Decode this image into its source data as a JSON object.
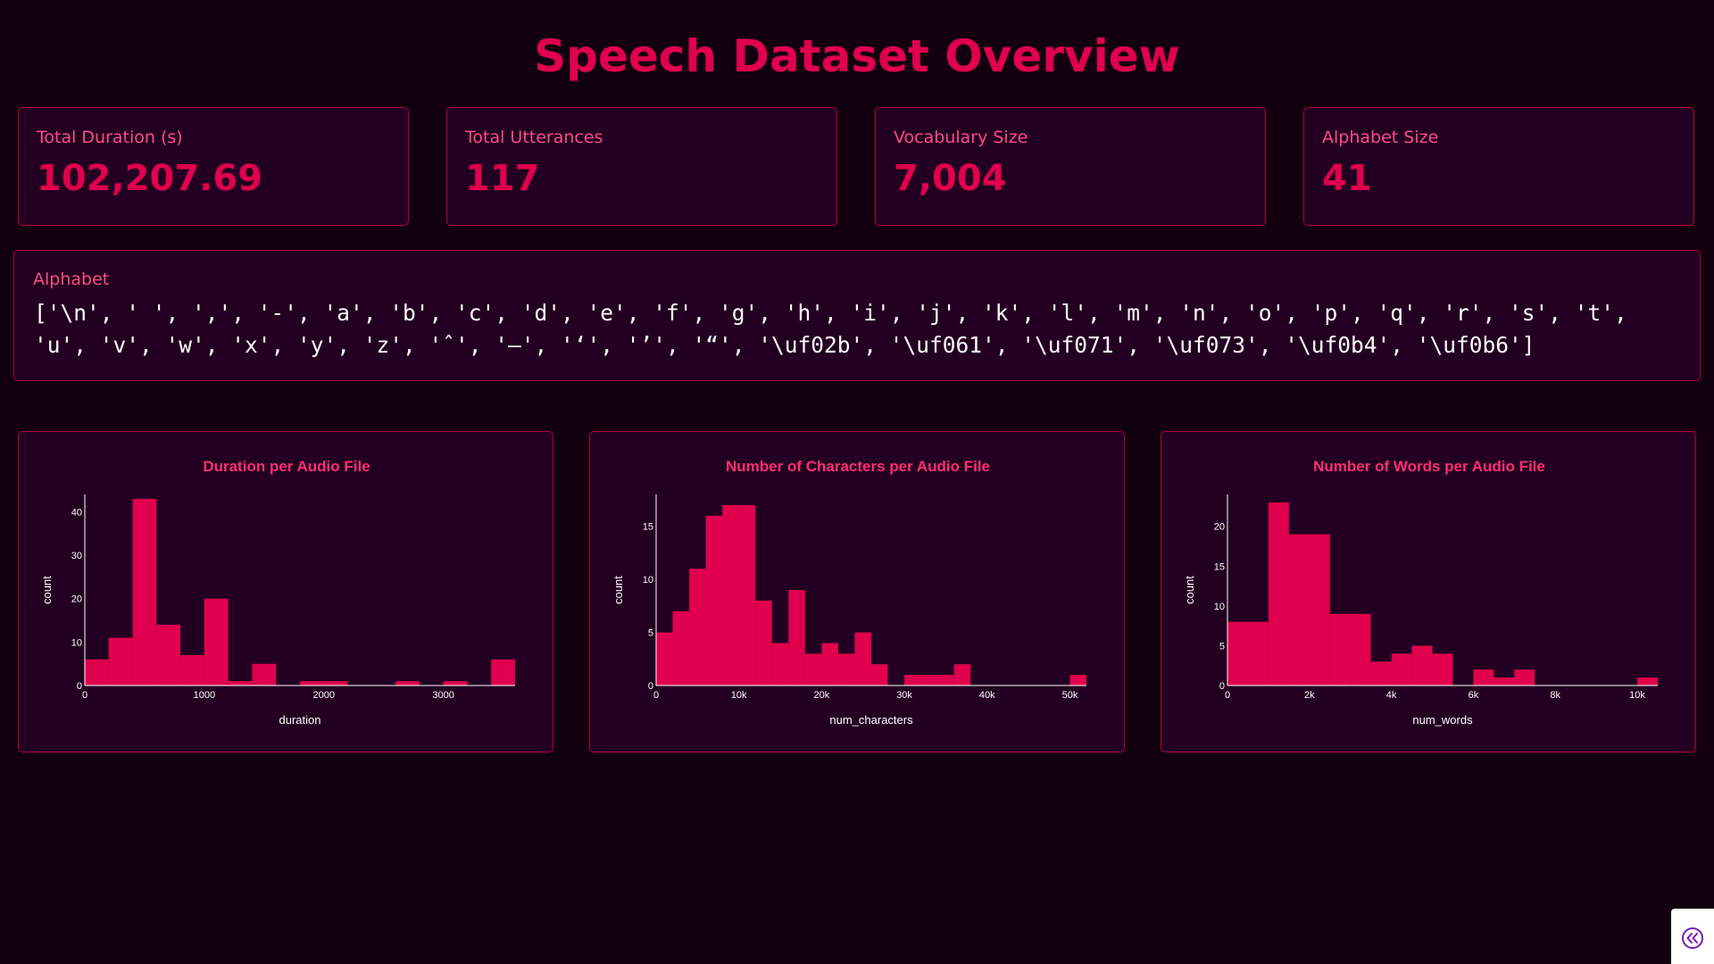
{
  "page": {
    "title": "Speech Dataset Overview"
  },
  "colors": {
    "background": "#12000f",
    "card_background": "#230021",
    "card_border": "#b5003d",
    "accent": "#e0004d",
    "label": "#ff4a87",
    "bar": "#e0004d"
  },
  "stats": [
    {
      "label": "Total Duration (s)",
      "value": "102,207.69"
    },
    {
      "label": "Total Utterances",
      "value": "117"
    },
    {
      "label": "Vocabulary Size",
      "value": "7,004"
    },
    {
      "label": "Alphabet Size",
      "value": "41"
    }
  ],
  "alphabet": {
    "label": "Alphabet",
    "text": "['\\n', ' ', ',', '-', 'a', 'b', 'c', 'd', 'e', 'f', 'g', 'h', 'i', 'j', 'k', 'l', 'm', 'n', 'o', 'p', 'q', 'r', 's', 't', 'u', 'v', 'w', 'x', 'y', 'z', 'ˆ', '—', '‘', '’', '“', '\\uf02b', '\\uf061', '\\uf071', '\\uf073', '\\uf0b4', '\\uf0b6']"
  },
  "collapse_button": {
    "icon": "chevron-double-left-icon"
  },
  "chart_data": [
    {
      "type": "bar",
      "title": "Duration per Audio File",
      "xlabel": "duration",
      "ylabel": "count",
      "xlim": [
        0,
        3600
      ],
      "ylim": [
        0,
        44
      ],
      "xticks": [
        0,
        1000,
        2000,
        3000
      ],
      "xtick_labels": [
        "0",
        "1000",
        "2000",
        "3000"
      ],
      "yticks": [
        0,
        10,
        20,
        30,
        40
      ],
      "ytick_labels": [
        "0",
        "10",
        "20",
        "30",
        "40"
      ],
      "bin_width": 200,
      "bins_start": [
        0,
        200,
        400,
        600,
        800,
        1000,
        1200,
        1400,
        1600,
        1800,
        2000,
        2200,
        2400,
        2600,
        2800,
        3000,
        3200,
        3400
      ],
      "values": [
        6,
        11,
        43,
        14,
        7,
        20,
        1,
        5,
        0,
        1,
        1,
        0,
        0,
        1,
        0,
        1,
        0,
        6
      ],
      "grid": false
    },
    {
      "type": "bar",
      "title": "Number of Characters per Audio File",
      "xlabel": "num_characters",
      "ylabel": "count",
      "xlim": [
        0,
        52000
      ],
      "ylim": [
        0,
        18
      ],
      "xticks": [
        0,
        10000,
        20000,
        30000,
        40000,
        50000
      ],
      "xtick_labels": [
        "0",
        "10k",
        "20k",
        "30k",
        "40k",
        "50k"
      ],
      "yticks": [
        0,
        5,
        10,
        15
      ],
      "ytick_labels": [
        "0",
        "5",
        "10",
        "15"
      ],
      "bin_width": 2000,
      "bins_start": [
        0,
        2000,
        4000,
        6000,
        8000,
        10000,
        12000,
        14000,
        16000,
        18000,
        20000,
        22000,
        24000,
        26000,
        28000,
        30000,
        32000,
        34000,
        36000,
        38000,
        40000,
        42000,
        44000,
        46000,
        48000,
        50000
      ],
      "values": [
        5,
        7,
        11,
        16,
        17,
        17,
        8,
        4,
        9,
        3,
        4,
        3,
        5,
        2,
        0,
        1,
        1,
        1,
        2,
        0,
        0,
        0,
        0,
        0,
        0,
        1
      ],
      "grid": false
    },
    {
      "type": "bar",
      "title": "Number of Words per Audio File",
      "xlabel": "num_words",
      "ylabel": "count",
      "xlim": [
        0,
        10500
      ],
      "ylim": [
        0,
        24
      ],
      "xticks": [
        0,
        2000,
        4000,
        6000,
        8000,
        10000
      ],
      "xtick_labels": [
        "0",
        "2k",
        "4k",
        "6k",
        "8k",
        "10k"
      ],
      "yticks": [
        0,
        5,
        10,
        15,
        20
      ],
      "ytick_labels": [
        "0",
        "5",
        "10",
        "15",
        "20"
      ],
      "bin_width": 500,
      "bins_start": [
        0,
        500,
        1000,
        1500,
        2000,
        2500,
        3000,
        3500,
        4000,
        4500,
        5000,
        5500,
        6000,
        6500,
        7000,
        7500,
        8000,
        8500,
        9000,
        9500,
        10000
      ],
      "values": [
        8,
        8,
        23,
        19,
        19,
        9,
        9,
        3,
        4,
        5,
        4,
        0,
        2,
        1,
        2,
        0,
        0,
        0,
        0,
        0,
        1
      ],
      "grid": false
    }
  ]
}
